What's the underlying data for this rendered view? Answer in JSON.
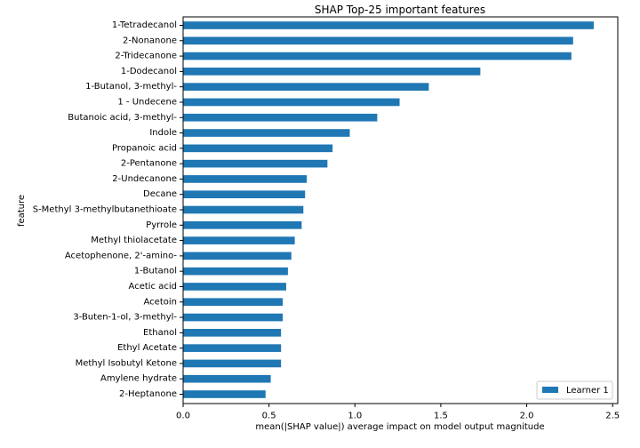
{
  "chart_data": {
    "type": "bar",
    "orientation": "horizontal",
    "title": "SHAP Top-25 important features",
    "xlabel": "mean(|SHAP value|) average impact on model output magnitude",
    "ylabel": "feature",
    "xlim": [
      0,
      2.53
    ],
    "xticks": [
      0.0,
      0.5,
      1.0,
      1.5,
      2.0,
      2.5
    ],
    "xtick_labels": [
      "0.0",
      "0.5",
      "1.0",
      "1.5",
      "2.0",
      "2.5"
    ],
    "grid": false,
    "legend_position": "lower-right",
    "bar_color": "#1f77b4",
    "categories": [
      "1-Tetradecanol",
      "2-Nonanone",
      "2-Tridecanone",
      "1-Dodecanol",
      "1-Butanol, 3-methyl-",
      "1 - Undecene",
      "Butanoic acid, 3-methyl-",
      "Indole",
      "Propanoic acid",
      "2-Pentanone",
      "2-Undecanone",
      "Decane",
      "S-Methyl 3-methylbutanethioate",
      "Pyrrole",
      "Methyl thiolacetate",
      "Acetophenone, 2'-amino-",
      "1-Butanol",
      "Acetic acid",
      "Acetoin",
      "3-Buten-1-ol, 3-methyl-",
      "Ethanol",
      "Ethyl Acetate",
      "Methyl Isobutyl Ketone",
      "Amylene hydrate",
      "2-Heptanone"
    ],
    "series": [
      {
        "name": "Learner 1",
        "values": [
          2.39,
          2.27,
          2.26,
          1.73,
          1.43,
          1.26,
          1.13,
          0.97,
          0.87,
          0.84,
          0.72,
          0.71,
          0.7,
          0.69,
          0.65,
          0.63,
          0.61,
          0.6,
          0.58,
          0.58,
          0.57,
          0.57,
          0.57,
          0.51,
          0.48
        ]
      }
    ]
  }
}
